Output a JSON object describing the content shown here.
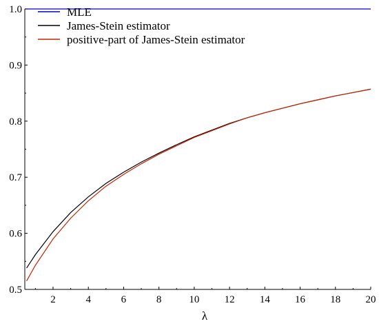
{
  "chart_data": {
    "type": "line",
    "xlabel": "λ",
    "ylabel": "",
    "xlim": [
      0.4,
      20
    ],
    "ylim": [
      0.5,
      1.0
    ],
    "xticks": [
      2,
      4,
      6,
      8,
      10,
      12,
      14,
      16,
      18,
      20
    ],
    "yticks": [
      0.5,
      0.6,
      0.7,
      0.8,
      0.9,
      1.0
    ],
    "ytick_labels": [
      "0.5",
      "0.6",
      "0.7",
      "0.8",
      "0.9",
      "1.0"
    ],
    "grid": false,
    "legend_position": "top-left",
    "series": [
      {
        "name": "MLE",
        "color": "#0000cc",
        "x": [
          0.4,
          20
        ],
        "y": [
          1.0,
          1.0
        ]
      },
      {
        "name": "James-Stein estimator",
        "color": "#000000",
        "x": [
          0.5,
          1,
          2,
          3,
          4,
          5,
          6,
          7,
          8,
          9,
          10,
          11,
          12,
          13,
          14,
          15,
          16,
          17,
          18,
          19,
          20
        ],
        "y": [
          0.538,
          0.562,
          0.603,
          0.637,
          0.665,
          0.689,
          0.709,
          0.727,
          0.743,
          0.758,
          0.772,
          0.784,
          0.796,
          0.806,
          0.815,
          0.823,
          0.831,
          0.838,
          0.845,
          0.851,
          0.857
        ]
      },
      {
        "name": "positive-part of James-Stein estimator",
        "color": "#cc2200",
        "x": [
          0.5,
          1,
          2,
          3,
          4,
          5,
          6,
          7,
          8,
          9,
          10,
          11,
          12,
          13,
          14,
          15,
          16,
          17,
          18,
          19,
          20
        ],
        "y": [
          0.515,
          0.543,
          0.59,
          0.627,
          0.658,
          0.684,
          0.705,
          0.724,
          0.741,
          0.756,
          0.771,
          0.783,
          0.795,
          0.806,
          0.815,
          0.823,
          0.831,
          0.838,
          0.845,
          0.851,
          0.857
        ]
      }
    ]
  }
}
